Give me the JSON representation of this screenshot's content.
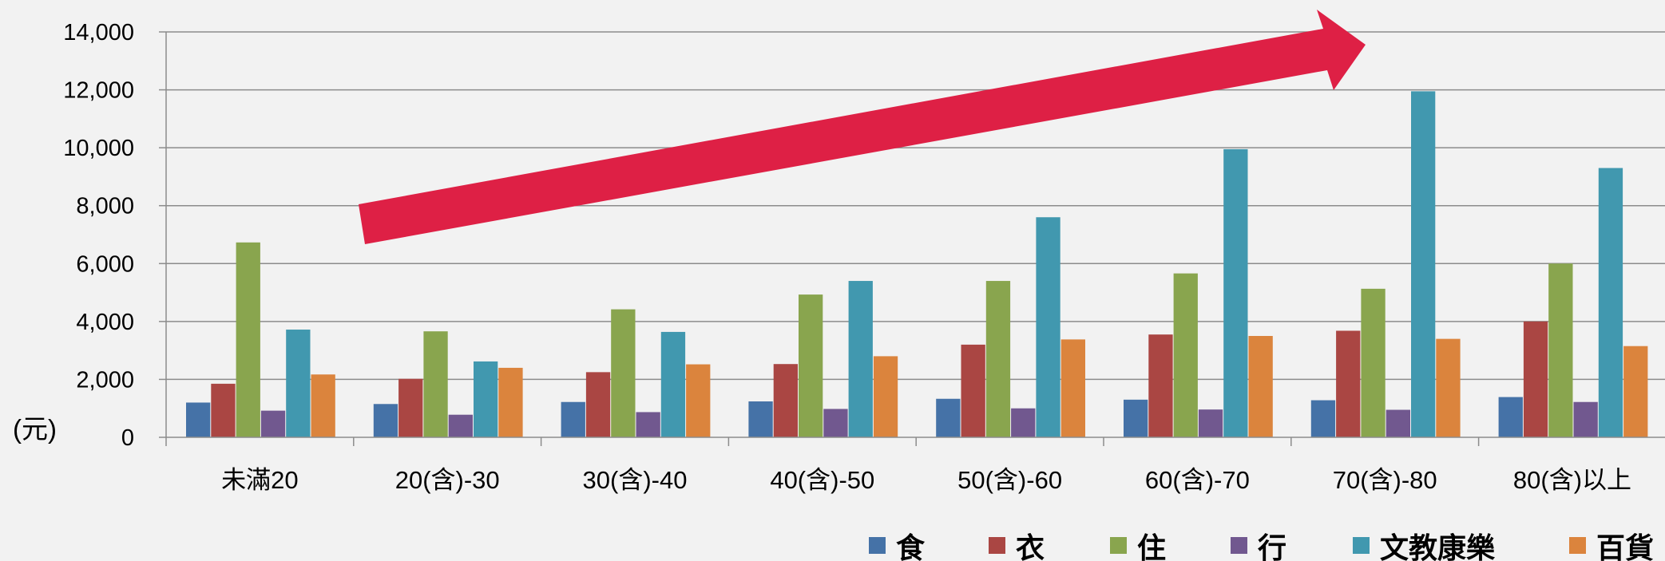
{
  "chart_data": {
    "type": "bar",
    "title": "",
    "xlabel": "",
    "ylabel": "(元)",
    "ylim": [
      0,
      14000
    ],
    "yticks": [
      "0",
      "2,000",
      "4,000",
      "6,000",
      "8,000",
      "10,000",
      "12,000",
      "14,000"
    ],
    "grid": true,
    "legend_position": "bottom-right",
    "categories": [
      "未滿20",
      "20(含)-30",
      "30(含)-40",
      "40(含)-50",
      "50(含)-60",
      "60(含)-70",
      "70(含)-80",
      "80(含)以上"
    ],
    "series": [
      {
        "name": "食",
        "color": "#4572a7",
        "values": [
          1200,
          1150,
          1220,
          1240,
          1330,
          1300,
          1280,
          1390
        ]
      },
      {
        "name": "衣",
        "color": "#aa4643",
        "values": [
          1850,
          2020,
          2250,
          2530,
          3200,
          3550,
          3680,
          4000
        ]
      },
      {
        "name": "住",
        "color": "#89a54e",
        "values": [
          6730,
          3660,
          4420,
          4930,
          5400,
          5660,
          5130,
          6000
        ]
      },
      {
        "name": "行",
        "color": "#71588f",
        "values": [
          920,
          780,
          870,
          980,
          1000,
          960,
          950,
          1220
        ]
      },
      {
        "name": "文教康樂",
        "color": "#4198af",
        "values": [
          3720,
          2620,
          3640,
          5400,
          7600,
          9950,
          11950,
          9300
        ]
      },
      {
        "name": "百貨",
        "color": "#db843d",
        "values": [
          2170,
          2400,
          2520,
          2800,
          3380,
          3500,
          3400,
          3150
        ]
      }
    ],
    "annotations": [
      {
        "type": "arrow",
        "direction": "up-right",
        "color": "#de2045"
      }
    ]
  }
}
